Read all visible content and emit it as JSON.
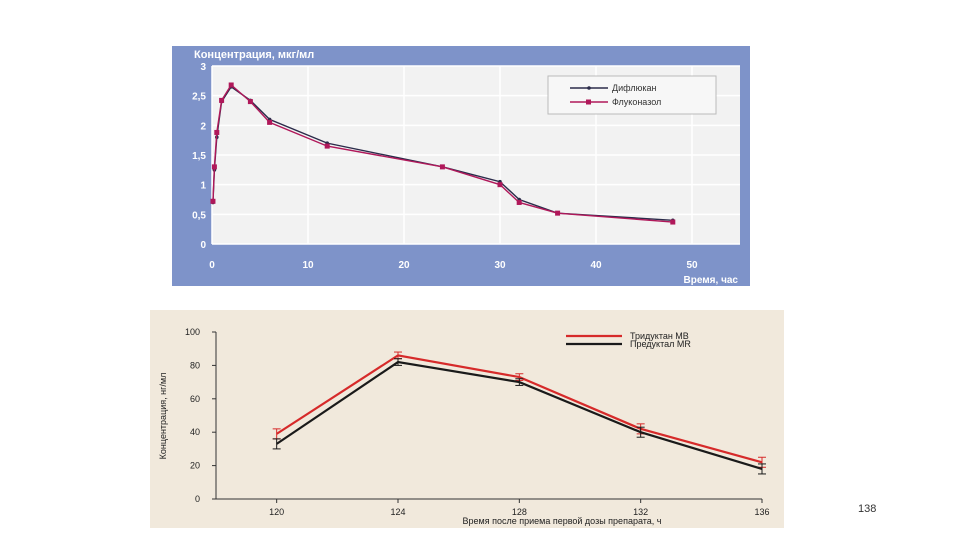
{
  "slide_number": "138",
  "chart_data": [
    {
      "type": "line",
      "ylabel": "Концентрация, мкг/мл",
      "xlabel": "Время, час",
      "xlim": [
        0,
        55
      ],
      "ylim": [
        0,
        3
      ],
      "x_ticks": [
        "0",
        "10",
        "20",
        "30",
        "40",
        "50"
      ],
      "y_ticks": [
        "0",
        "0,5",
        "1",
        "1,5",
        "2",
        "2,5",
        "3"
      ],
      "grid": true,
      "legend_position": "top-right",
      "colors": {
        "background": "#7e93c9",
        "plot": "#f2f2f2",
        "grid": "#ffffff"
      },
      "series": [
        {
          "name": "Дифлюкан",
          "color": "#2b2b4a",
          "x": [
            0.1,
            0.25,
            0.5,
            1,
            2,
            4,
            6,
            12,
            24,
            30,
            32,
            36,
            48
          ],
          "y": [
            0.7,
            1.25,
            1.8,
            2.4,
            2.65,
            2.42,
            2.1,
            1.7,
            1.3,
            1.05,
            0.75,
            0.52,
            0.4
          ]
        },
        {
          "name": "Флуконазол",
          "color": "#b0185a",
          "x": [
            0.1,
            0.25,
            0.5,
            1,
            2,
            4,
            6,
            12,
            24,
            30,
            32,
            36,
            48
          ],
          "y": [
            0.72,
            1.3,
            1.88,
            2.42,
            2.68,
            2.4,
            2.05,
            1.65,
            1.3,
            1.0,
            0.7,
            0.52,
            0.37
          ]
        }
      ]
    },
    {
      "type": "line",
      "ylabel": "Концентрация, нг/мл",
      "xlabel": "Время после приема первой дозы препарата, ч",
      "x": [
        120,
        124,
        128,
        132,
        136
      ],
      "x_ticks": [
        "120",
        "124",
        "128",
        "132",
        "136"
      ],
      "y_ticks": [
        "0",
        "20",
        "40",
        "60",
        "80",
        "100"
      ],
      "xlim": [
        118,
        136
      ],
      "ylim": [
        0,
        100
      ],
      "grid": false,
      "legend_position": "top-right",
      "colors": {
        "background": "#f1e9dc"
      },
      "series": [
        {
          "name": "Тридуктан МВ",
          "color": "#d62a2a",
          "values": [
            39,
            86,
            73,
            42,
            22
          ],
          "errors": [
            3,
            2,
            2,
            3,
            3
          ]
        },
        {
          "name": "Предуктал МR",
          "color": "#1a1a1a",
          "values": [
            33,
            82,
            70,
            40,
            18
          ],
          "errors": [
            3,
            2,
            2,
            3,
            3
          ]
        }
      ]
    }
  ]
}
